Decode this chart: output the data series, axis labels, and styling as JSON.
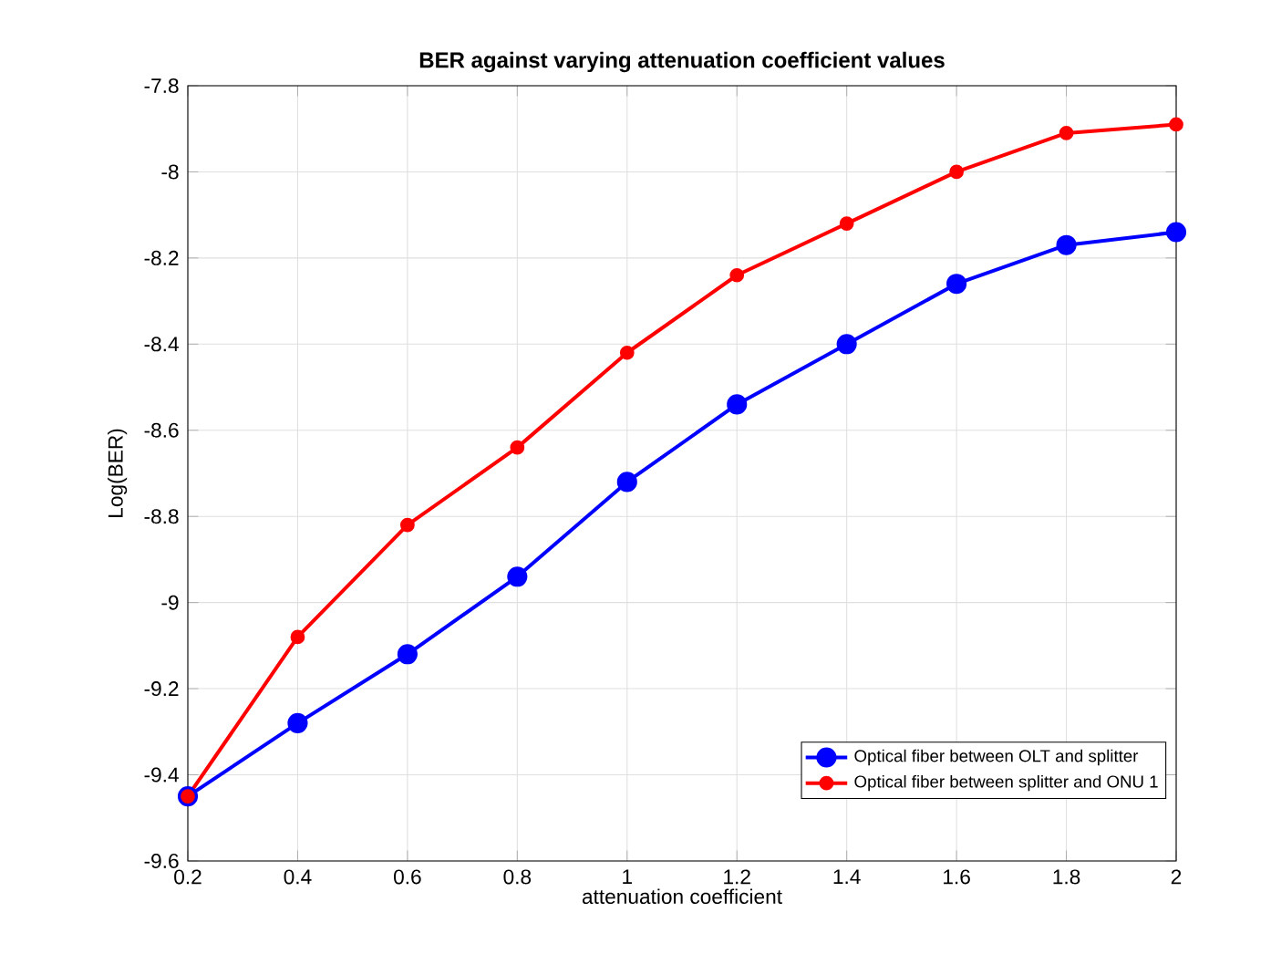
{
  "chart_data": {
    "type": "line",
    "title": "BER against varying attenuation coefficient values",
    "xlabel": "attenuation coefficient",
    "ylabel": "Log(BER)",
    "x": [
      0.2,
      0.4,
      0.6,
      0.8,
      1.0,
      1.2,
      1.4,
      1.6,
      1.8,
      2.0
    ],
    "series": [
      {
        "name": "Optical fiber between OLT and splitter",
        "color": "#0000ff",
        "values": [
          -9.45,
          -9.28,
          -9.12,
          -8.94,
          -8.72,
          -8.54,
          -8.4,
          -8.26,
          -8.17,
          -8.14
        ]
      },
      {
        "name": "Optical fiber between splitter and ONU 1",
        "color": "#ff0000",
        "values": [
          -9.45,
          -9.08,
          -8.82,
          -8.64,
          -8.42,
          -8.24,
          -8.12,
          -8.0,
          -7.91,
          -7.89
        ]
      }
    ],
    "xlim": [
      0.2,
      2
    ],
    "xticks": [
      0.2,
      0.4,
      0.6,
      0.8,
      1,
      1.2,
      1.4,
      1.6,
      1.8,
      2
    ],
    "ylim": [
      -9.6,
      -7.8
    ],
    "yticks": [
      -9.6,
      -9.4,
      -9.2,
      -9,
      -8.8,
      -8.6,
      -8.4,
      -8.2,
      -8,
      -7.8
    ],
    "grid": true,
    "legend": "bottom right",
    "marker": "circle",
    "line_style": "solid"
  }
}
